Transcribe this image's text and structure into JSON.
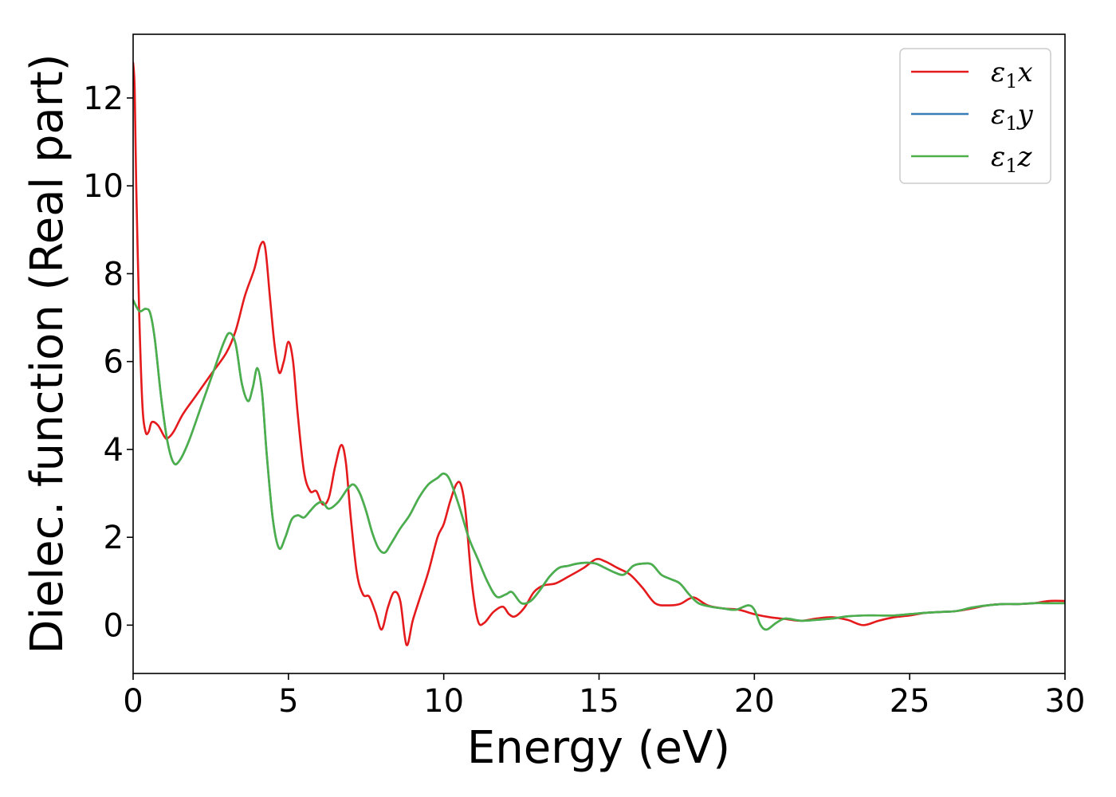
{
  "chart_data": {
    "type": "line",
    "xlabel": "Energy (eV)",
    "ylabel": "Dielec. function (Real part)",
    "xlim": [
      0,
      30
    ],
    "ylim": [
      -1.1,
      13.45
    ],
    "xticks": [
      0,
      5,
      10,
      15,
      20,
      25,
      30
    ],
    "yticks": [
      0,
      2,
      4,
      6,
      8,
      10,
      12
    ],
    "grid": false,
    "legend_position": "top-right",
    "series": [
      {
        "name": "ε₁x",
        "label_symbol": "ε",
        "label_subscript": "1",
        "label_axis": "x",
        "color": "#e41a1c",
        "x": [
          0,
          0.05,
          0.1,
          0.2,
          0.3,
          0.4,
          0.5,
          0.6,
          0.8,
          1.0,
          1.1,
          1.3,
          1.6,
          2.0,
          2.5,
          3.0,
          3.3,
          3.6,
          3.9,
          4.1,
          4.25,
          4.4,
          4.55,
          4.7,
          4.85,
          5.0,
          5.15,
          5.3,
          5.5,
          5.7,
          5.9,
          6.1,
          6.3,
          6.5,
          6.7,
          6.85,
          7.0,
          7.2,
          7.4,
          7.6,
          7.8,
          8.0,
          8.2,
          8.4,
          8.6,
          8.8,
          9.0,
          9.2,
          9.5,
          9.8,
          10.0,
          10.2,
          10.4,
          10.55,
          10.7,
          10.9,
          11.1,
          11.3,
          11.6,
          11.9,
          12.1,
          12.3,
          12.6,
          12.9,
          13.2,
          13.6,
          14.0,
          14.5,
          14.9,
          15.2,
          15.6,
          16.0,
          16.4,
          16.8,
          17.2,
          17.6,
          17.9,
          18.1,
          18.5,
          19.0,
          19.5,
          20.0,
          20.5,
          21.0,
          21.5,
          22.0,
          22.5,
          23.0,
          23.5,
          24.0,
          24.5,
          25.0,
          25.5,
          26.0,
          26.5,
          27.0,
          27.5,
          28.0,
          28.5,
          29.0,
          29.5,
          30.0
        ],
        "values": [
          12.8,
          12.2,
          10.0,
          7.0,
          5.0,
          4.4,
          4.4,
          4.62,
          4.55,
          4.3,
          4.25,
          4.4,
          4.8,
          5.2,
          5.7,
          6.2,
          6.7,
          7.5,
          8.1,
          8.65,
          8.6,
          7.5,
          6.4,
          5.75,
          6.0,
          6.45,
          6.0,
          4.8,
          3.5,
          3.05,
          3.05,
          2.75,
          2.9,
          3.6,
          4.1,
          3.7,
          2.5,
          1.2,
          0.7,
          0.65,
          0.3,
          -0.1,
          0.4,
          0.75,
          0.55,
          -0.45,
          0.1,
          0.55,
          1.2,
          2.0,
          2.3,
          2.8,
          3.2,
          3.2,
          2.6,
          1.0,
          0.1,
          0.05,
          0.3,
          0.42,
          0.25,
          0.2,
          0.4,
          0.75,
          0.9,
          0.95,
          1.1,
          1.3,
          1.5,
          1.45,
          1.3,
          1.15,
          0.85,
          0.5,
          0.45,
          0.48,
          0.6,
          0.62,
          0.45,
          0.38,
          0.35,
          0.25,
          0.18,
          0.14,
          0.1,
          0.15,
          0.18,
          0.12,
          0.0,
          0.1,
          0.18,
          0.22,
          0.28,
          0.3,
          0.32,
          0.38,
          0.45,
          0.48,
          0.48,
          0.5,
          0.55,
          0.55
        ]
      },
      {
        "name": "ε₁y",
        "label_symbol": "ε",
        "label_subscript": "1",
        "label_axis": "y",
        "color": "#377eb8",
        "x": [
          0,
          0.2,
          0.4,
          0.55,
          0.7,
          0.9,
          1.1,
          1.3,
          1.5,
          1.8,
          2.2,
          2.6,
          2.9,
          3.1,
          3.3,
          3.5,
          3.7,
          3.85,
          4.0,
          4.15,
          4.3,
          4.5,
          4.7,
          4.9,
          5.1,
          5.3,
          5.5,
          5.7,
          5.9,
          6.1,
          6.3,
          6.6,
          6.9,
          7.1,
          7.3,
          7.5,
          7.7,
          7.9,
          8.1,
          8.3,
          8.6,
          8.9,
          9.2,
          9.5,
          9.8,
          10.0,
          10.2,
          10.5,
          10.8,
          11.1,
          11.4,
          11.7,
          12.0,
          12.2,
          12.5,
          12.8,
          13.1,
          13.4,
          13.7,
          14.0,
          14.3,
          14.6,
          14.9,
          15.2,
          15.5,
          15.8,
          16.1,
          16.4,
          16.7,
          17.0,
          17.3,
          17.6,
          17.9,
          18.2,
          18.6,
          19.0,
          19.4,
          19.8,
          20.0,
          20.2,
          20.4,
          20.7,
          21.0,
          21.5,
          22.0,
          22.5,
          23.0,
          23.5,
          24.0,
          24.5,
          25.0,
          25.5,
          26.0,
          26.5,
          27.0,
          27.5,
          28.0,
          28.5,
          29.0,
          29.5,
          30.0
        ],
        "values": [
          7.4,
          7.15,
          7.2,
          7.1,
          6.5,
          5.2,
          4.2,
          3.7,
          3.75,
          4.2,
          5.0,
          5.8,
          6.4,
          6.65,
          6.4,
          5.5,
          5.1,
          5.4,
          5.85,
          5.3,
          3.9,
          2.4,
          1.75,
          2.0,
          2.4,
          2.5,
          2.45,
          2.6,
          2.75,
          2.8,
          2.65,
          2.8,
          3.1,
          3.2,
          3.0,
          2.6,
          2.1,
          1.75,
          1.65,
          1.85,
          2.2,
          2.5,
          2.9,
          3.2,
          3.35,
          3.45,
          3.3,
          2.7,
          2.0,
          1.5,
          1.0,
          0.65,
          0.7,
          0.75,
          0.5,
          0.55,
          0.8,
          1.1,
          1.3,
          1.35,
          1.4,
          1.42,
          1.4,
          1.3,
          1.2,
          1.15,
          1.35,
          1.4,
          1.38,
          1.15,
          1.05,
          0.95,
          0.7,
          0.5,
          0.42,
          0.38,
          0.35,
          0.45,
          0.35,
          0.0,
          -0.1,
          0.05,
          0.15,
          0.1,
          0.12,
          0.15,
          0.2,
          0.22,
          0.22,
          0.22,
          0.25,
          0.28,
          0.3,
          0.32,
          0.4,
          0.45,
          0.48,
          0.48,
          0.5,
          0.5,
          0.5
        ]
      },
      {
        "name": "ε₁z",
        "label_symbol": "ε",
        "label_subscript": "1",
        "label_axis": "z",
        "color": "#4daf4a",
        "x": [
          0,
          0.2,
          0.4,
          0.55,
          0.7,
          0.9,
          1.1,
          1.3,
          1.5,
          1.8,
          2.2,
          2.6,
          2.9,
          3.1,
          3.3,
          3.5,
          3.7,
          3.85,
          4.0,
          4.15,
          4.3,
          4.5,
          4.7,
          4.9,
          5.1,
          5.3,
          5.5,
          5.7,
          5.9,
          6.1,
          6.3,
          6.6,
          6.9,
          7.1,
          7.3,
          7.5,
          7.7,
          7.9,
          8.1,
          8.3,
          8.6,
          8.9,
          9.2,
          9.5,
          9.8,
          10.0,
          10.2,
          10.5,
          10.8,
          11.1,
          11.4,
          11.7,
          12.0,
          12.2,
          12.5,
          12.8,
          13.1,
          13.4,
          13.7,
          14.0,
          14.3,
          14.6,
          14.9,
          15.2,
          15.5,
          15.8,
          16.1,
          16.4,
          16.7,
          17.0,
          17.3,
          17.6,
          17.9,
          18.2,
          18.6,
          19.0,
          19.4,
          19.8,
          20.0,
          20.2,
          20.4,
          20.7,
          21.0,
          21.5,
          22.0,
          22.5,
          23.0,
          23.5,
          24.0,
          24.5,
          25.0,
          25.5,
          26.0,
          26.5,
          27.0,
          27.5,
          28.0,
          28.5,
          29.0,
          29.5,
          30.0
        ],
        "values": [
          7.4,
          7.15,
          7.2,
          7.1,
          6.5,
          5.2,
          4.2,
          3.7,
          3.75,
          4.2,
          5.0,
          5.8,
          6.4,
          6.65,
          6.4,
          5.5,
          5.1,
          5.4,
          5.85,
          5.3,
          3.9,
          2.4,
          1.75,
          2.0,
          2.4,
          2.5,
          2.45,
          2.6,
          2.75,
          2.8,
          2.65,
          2.8,
          3.1,
          3.2,
          3.0,
          2.6,
          2.1,
          1.75,
          1.65,
          1.85,
          2.2,
          2.5,
          2.9,
          3.2,
          3.35,
          3.45,
          3.3,
          2.7,
          2.0,
          1.5,
          1.0,
          0.65,
          0.7,
          0.75,
          0.5,
          0.55,
          0.8,
          1.1,
          1.3,
          1.35,
          1.4,
          1.42,
          1.4,
          1.3,
          1.2,
          1.15,
          1.35,
          1.4,
          1.38,
          1.15,
          1.05,
          0.95,
          0.7,
          0.5,
          0.42,
          0.38,
          0.35,
          0.45,
          0.35,
          0.0,
          -0.1,
          0.05,
          0.15,
          0.1,
          0.12,
          0.15,
          0.2,
          0.22,
          0.22,
          0.22,
          0.25,
          0.28,
          0.3,
          0.32,
          0.4,
          0.45,
          0.48,
          0.48,
          0.5,
          0.5,
          0.5
        ]
      }
    ]
  }
}
